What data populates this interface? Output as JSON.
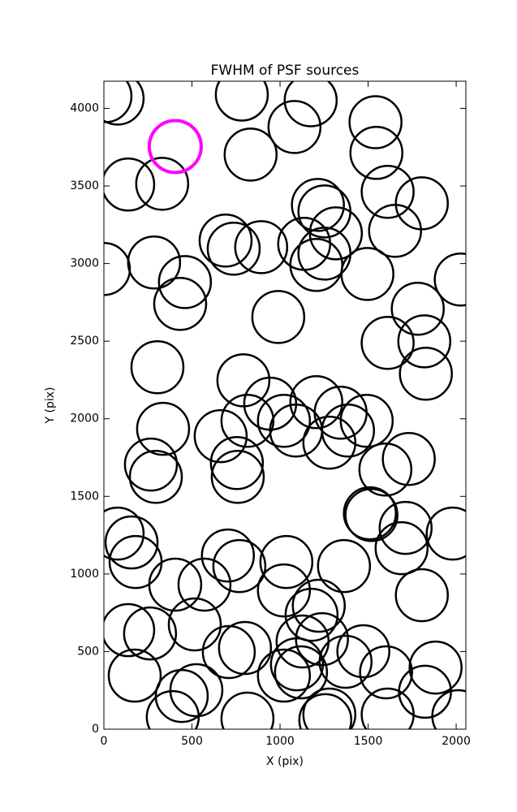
{
  "chart_data": {
    "type": "scatter",
    "title": "FWHM of PSF sources",
    "x_label": "X (pix)",
    "y_label": "Y (pix)",
    "xlim": [
      0,
      2055
    ],
    "ylim": [
      0,
      4175
    ],
    "xticks": [
      0,
      500,
      1000,
      1500,
      2000
    ],
    "yticks": [
      0,
      500,
      1000,
      1500,
      2000,
      2500,
      3000,
      3500,
      4000
    ],
    "grid": false,
    "series": [
      {
        "color": "#000000",
        "x": [
          9,
          78,
          783,
          1174,
          1542,
          1082,
          1547,
          833,
          138,
          331,
          1215,
          1252,
          1611,
          1805,
          1653,
          1317,
          691,
          737,
          893,
          1137,
          1252,
          1206,
          0,
          285,
          460,
          433,
          1496,
          2026,
          990,
          1782,
          1819,
          1611,
          1828,
          304,
          792,
          944,
          1206,
          815,
          1022,
          1091,
          1344,
          1492,
          1386,
          336,
          663,
          1280,
          755,
          760,
          267,
          295,
          1598,
          1731,
          1510,
          1519,
          78,
          157,
          180,
          1713,
          1690,
          1980,
          704,
          769,
          1036,
          1363,
          405,
          571,
          1022,
          1220,
          1179,
          1805,
          138,
          262,
          516,
          709,
          801,
          1128,
          1238,
          1473,
          1372,
          1602,
          1883,
          175,
          1096,
          1119,
          1022,
          525,
          442,
          1823,
          391,
          815,
          1280,
          1257,
          1611,
          2012
        ],
        "y": [
          4079,
          4063,
          4089,
          4052,
          3911,
          3880,
          3713,
          3702,
          3509,
          3514,
          3378,
          3336,
          3462,
          3388,
          3211,
          3195,
          3148,
          3096,
          3106,
          3127,
          3064,
          2991,
          2965,
          3007,
          2881,
          2740,
          2933,
          2897,
          2656,
          2709,
          2499,
          2489,
          2290,
          2332,
          2248,
          2097,
          2107,
          1987,
          1987,
          1924,
          2039,
          1987,
          1924,
          1935,
          1888,
          1846,
          1715,
          1626,
          1705,
          1626,
          1673,
          1741,
          1391,
          1380,
          1260,
          1203,
          1077,
          1297,
          1166,
          1260,
          1119,
          1051,
          1077,
          1051,
          931,
          931,
          894,
          795,
          737,
          863,
          638,
          617,
          675,
          497,
          523,
          565,
          580,
          502,
          434,
          366,
          397,
          345,
          418,
          366,
          345,
          251,
          214,
          241,
          78,
          68,
          94,
          58,
          94,
          84
        ]
      },
      {
        "color": "#ff00ff",
        "x": [
          405
        ],
        "y": [
          3754
        ]
      }
    ]
  }
}
